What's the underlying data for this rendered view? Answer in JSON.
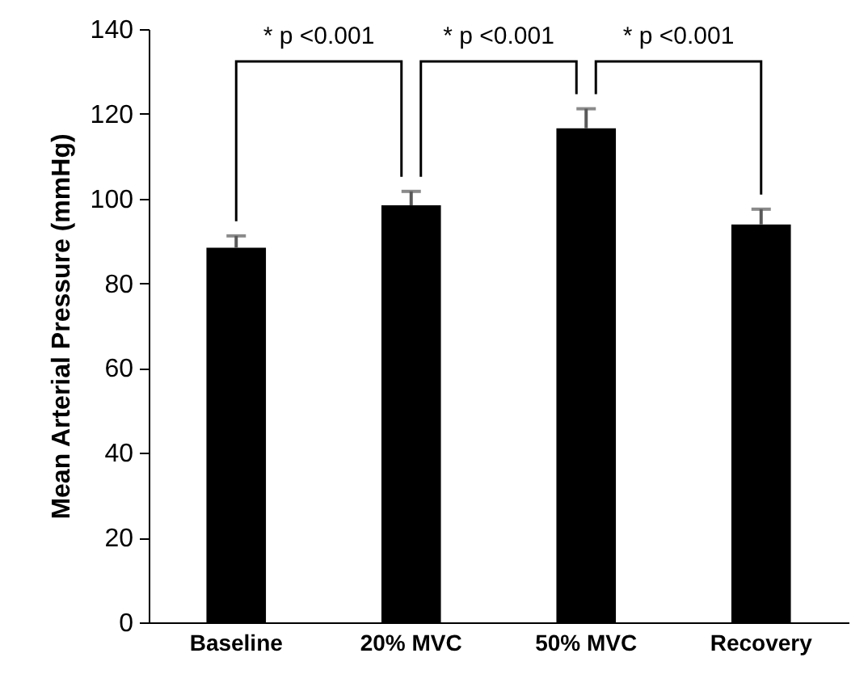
{
  "chart_data": {
    "type": "bar",
    "ylabel": "Mean Arterial Pressure (mmHg)",
    "categories": [
      "Baseline",
      "20% MVC",
      "50% MVC",
      "Recovery"
    ],
    "values": [
      88.4,
      98.4,
      116.6,
      93.9
    ],
    "errors": [
      [
        88.4,
        91.2
      ],
      [
        98.4,
        101.7
      ],
      [
        116.6,
        121.2
      ],
      [
        93.9,
        97.5
      ]
    ],
    "color": "#000000",
    "ylim": [
      0,
      140
    ],
    "yticks": [
      0,
      20,
      40,
      60,
      80,
      100,
      120,
      140
    ],
    "annotations": [
      "* p <0.001",
      "* p <0.001",
      "* p <0.001"
    ],
    "grid": false
  }
}
